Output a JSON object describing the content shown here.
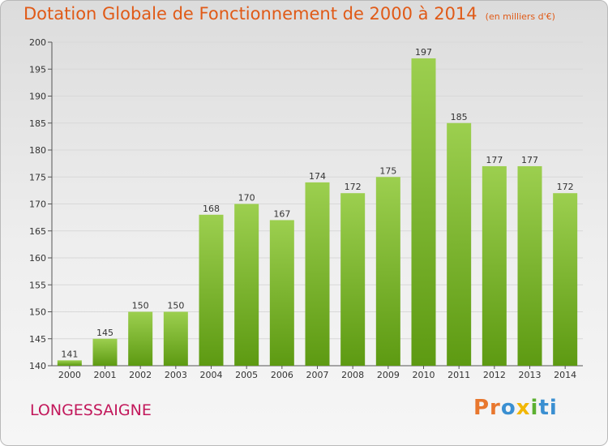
{
  "header": {
    "title": "Dotation Globale de Fonctionnement de 2000 à 2014",
    "unit_note": "(en milliers d'€)"
  },
  "footer": {
    "commune": "LONGESSAIGNE",
    "logo_parts": [
      "Pr",
      "o",
      "x",
      "i",
      "ti"
    ]
  },
  "colors": {
    "title": "#e05a17",
    "commune": "#c2185b",
    "bar_top": "#9ccf4f",
    "bar_bottom": "#5d9a12",
    "grid": "#d8d8d8"
  },
  "chart_data": {
    "type": "bar",
    "title": "Dotation Globale de Fonctionnement de 2000 à 2014",
    "subtitle": "(en milliers d'€)",
    "categories": [
      "2000",
      "2001",
      "2002",
      "2003",
      "2004",
      "2005",
      "2006",
      "2007",
      "2008",
      "2009",
      "2010",
      "2011",
      "2012",
      "2013",
      "2014"
    ],
    "values": [
      141,
      145,
      150,
      150,
      168,
      170,
      167,
      174,
      172,
      175,
      197,
      185,
      177,
      177,
      172
    ],
    "ylim": [
      140,
      200
    ],
    "yticks": [
      140,
      145,
      150,
      155,
      160,
      165,
      170,
      175,
      180,
      185,
      190,
      195,
      200
    ],
    "grid": true,
    "data_labels": true
  }
}
